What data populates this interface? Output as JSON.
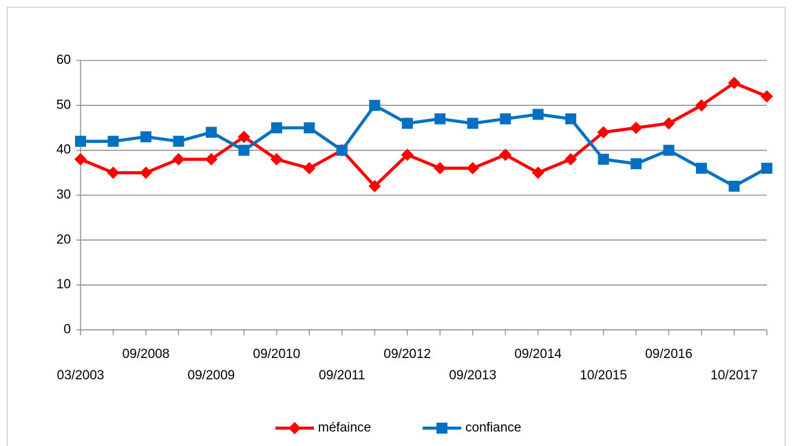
{
  "chart_data": {
    "type": "line",
    "categories": [
      "03/2003",
      null,
      "09/2008",
      null,
      "09/2009",
      null,
      "09/2010",
      null,
      "09/2011",
      null,
      "09/2012",
      null,
      "09/2013",
      null,
      "09/2014",
      null,
      "10/2015",
      null,
      "09/2016",
      null,
      "10/2017",
      null
    ],
    "series": [
      {
        "name": "méfaince",
        "color": "#ff0000",
        "marker": "diamond",
        "values": [
          38,
          35,
          35,
          38,
          38,
          43,
          38,
          36,
          40,
          32,
          39,
          36,
          36,
          39,
          35,
          38,
          44,
          45,
          46,
          50,
          55,
          52
        ]
      },
      {
        "name": "confiance",
        "color": "#0070c0",
        "marker": "square",
        "values": [
          42,
          42,
          43,
          42,
          44,
          40,
          45,
          45,
          40,
          50,
          46,
          47,
          46,
          47,
          48,
          47,
          38,
          37,
          40,
          36,
          32,
          36
        ]
      }
    ],
    "ylim": [
      0,
      60
    ],
    "yticks": [
      0,
      10,
      20,
      30,
      40,
      50,
      60
    ],
    "grid": true,
    "legend": "bottom"
  }
}
